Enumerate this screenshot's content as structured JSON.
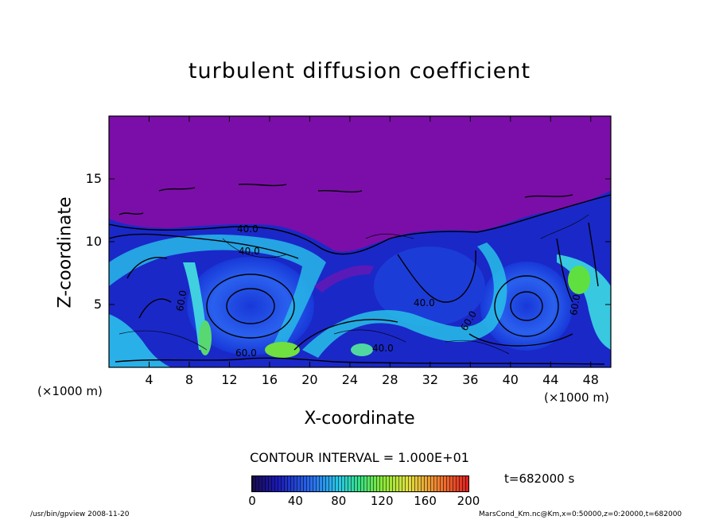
{
  "chart_data": {
    "type": "heatmap",
    "title": "turbulent diffusion coefficient",
    "xlabel": "X-coordinate",
    "ylabel": "Z-coordinate",
    "x_unit": "(×1000 m)",
    "y_unit": "(×1000 m)",
    "xlim": [
      0,
      50
    ],
    "ylim": [
      0,
      20
    ],
    "x_ticks": [
      "4",
      "8",
      "12",
      "16",
      "20",
      "24",
      "28",
      "32",
      "36",
      "40",
      "44",
      "48"
    ],
    "y_ticks": [
      "5",
      "10",
      "15"
    ],
    "contour_interval_text": "CONTOUR INTERVAL = 1.000E+01",
    "contour_labels": [
      "40.0",
      "40.0",
      "40.0",
      "60.0",
      "60.0",
      "60.0",
      "60.0",
      "40.0"
    ],
    "colorbar": {
      "min": 0,
      "max": 200,
      "ticks": [
        "0",
        "40",
        "80",
        "120",
        "160",
        "200"
      ]
    },
    "colors": {
      "background_purple": "#7b0ea8",
      "low_blue": "#1020c8",
      "mid_blue": "#2a6cf0",
      "cyan": "#24c8e8",
      "green": "#5cde3a"
    },
    "time_label": "t=682000 s"
  },
  "footer": {
    "left": "/usr/bin/gpview   2008-11-20",
    "right": "MarsCond_Km.nc@Km,x=0:50000,z=0:20000,t=682000"
  }
}
